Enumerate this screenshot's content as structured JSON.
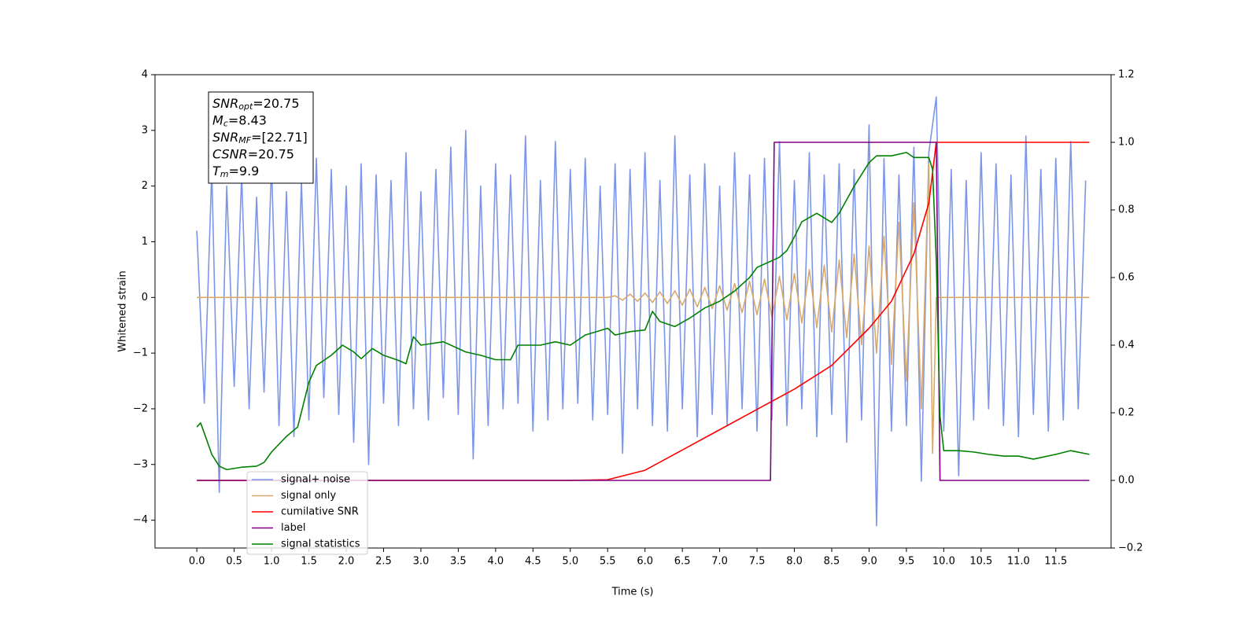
{
  "chart_data": {
    "type": "line",
    "xlabel": "Time (s)",
    "ylabel": "Whitened strain",
    "xlim": [
      -0.56,
      12.24
    ],
    "ylim": [
      -4.5,
      4
    ],
    "y2lim": [
      -0.2,
      1.2
    ],
    "xticks": [
      {
        "value": 0,
        "label": "0.0"
      },
      0.5,
      {
        "value": 1,
        "label": "1.0"
      },
      1.5,
      {
        "value": 2,
        "label": "2.0"
      },
      2.5,
      {
        "value": 3,
        "label": "3.0"
      },
      3.5,
      {
        "value": 4,
        "label": "4.0"
      },
      4.5,
      {
        "value": 5,
        "label": "5.0"
      },
      5.5,
      {
        "value": 6,
        "label": "6.0"
      },
      6.5,
      {
        "value": 7,
        "label": "7.0"
      },
      7.5,
      {
        "value": 8,
        "label": "8.0"
      },
      8.5,
      {
        "value": 9,
        "label": "9.0"
      },
      9.5,
      {
        "value": 10,
        "label": "10.0"
      },
      10.5,
      {
        "value": 11,
        "label": "11.0"
      },
      11.5
    ],
    "yticks": [
      {
        "value": -4,
        "label": "−4"
      },
      {
        "value": -3,
        "label": "−3"
      },
      {
        "value": -2,
        "label": "−2"
      },
      {
        "value": -1,
        "label": "−1"
      },
      0,
      1,
      2,
      3,
      4
    ],
    "y2ticks": [
      {
        "value": -0.2,
        "label": "−0.2"
      },
      {
        "value": 0,
        "label": "0.0"
      },
      0.2,
      0.4,
      0.6,
      0.8,
      {
        "value": 1,
        "label": "1.0"
      },
      1.2
    ],
    "annotation": [
      {
        "text": "SNR",
        "sub": "opt",
        "value": "=20.75"
      },
      {
        "text": "M",
        "sub": "c",
        "value": "=8.43"
      },
      {
        "text": "SNR",
        "sub": "MF",
        "value": "=[22.71]"
      },
      {
        "text": "CSNR",
        "value": "=20.75"
      },
      {
        "text": "T",
        "sub": "m",
        "value": "=9.9"
      }
    ],
    "series": [
      {
        "name": "signal+ noise",
        "color": "#7b96e8",
        "axis": "y",
        "x": [
          0,
          0.1,
          0.2,
          0.3,
          0.4,
          0.5,
          0.6,
          0.7,
          0.8,
          0.9,
          1,
          1.1,
          1.2,
          1.3,
          1.4,
          1.5,
          1.6,
          1.7,
          1.8,
          1.9,
          2,
          2.1,
          2.2,
          2.3,
          2.4,
          2.5,
          2.6,
          2.7,
          2.8,
          2.9,
          3,
          3.1,
          3.2,
          3.3,
          3.4,
          3.5,
          3.6,
          3.7,
          3.8,
          3.9,
          4,
          4.1,
          4.2,
          4.3,
          4.4,
          4.5,
          4.6,
          4.7,
          4.8,
          4.9,
          5,
          5.1,
          5.2,
          5.3,
          5.4,
          5.5,
          5.6,
          5.7,
          5.8,
          5.9,
          6,
          6.1,
          6.2,
          6.3,
          6.4,
          6.5,
          6.6,
          6.7,
          6.8,
          6.9,
          7,
          7.1,
          7.2,
          7.3,
          7.4,
          7.5,
          7.6,
          7.7,
          7.8,
          7.9,
          8,
          8.1,
          8.2,
          8.3,
          8.4,
          8.5,
          8.6,
          8.7,
          8.8,
          8.9,
          9,
          9.1,
          9.2,
          9.3,
          9.4,
          9.5,
          9.6,
          9.7,
          9.8,
          9.9,
          10,
          10.1,
          10.2,
          10.3,
          10.4,
          10.5,
          10.6,
          10.7,
          10.8,
          10.9,
          11,
          11.1,
          11.2,
          11.3,
          11.4,
          11.5,
          11.6,
          11.7,
          11.8,
          11.9
        ],
        "values": [
          1.2,
          -1.9,
          2.3,
          -3.5,
          2.0,
          -1.6,
          2.2,
          -2.0,
          1.8,
          -1.7,
          2.4,
          -2.3,
          1.9,
          -2.5,
          2.1,
          -2.2,
          2.5,
          -1.8,
          2.3,
          -2.1,
          2.0,
          -2.6,
          2.4,
          -3.0,
          2.2,
          -1.9,
          2.1,
          -2.3,
          2.6,
          -2.0,
          1.9,
          -2.2,
          2.3,
          -1.8,
          2.7,
          -2.1,
          3.0,
          -2.9,
          2.0,
          -2.3,
          2.4,
          -2.0,
          2.2,
          -1.9,
          2.9,
          -2.4,
          2.1,
          -2.2,
          2.8,
          -2.0,
          2.3,
          -1.9,
          2.5,
          -2.2,
          2.0,
          -2.1,
          2.4,
          -2.8,
          2.3,
          -2.0,
          2.6,
          -2.3,
          2.1,
          -2.4,
          2.9,
          -2.0,
          2.2,
          -2.5,
          2.4,
          -2.1,
          2.0,
          -2.3,
          2.6,
          -2.0,
          2.2,
          -2.4,
          2.5,
          -2.2,
          2.8,
          -2.3,
          2.1,
          -2.0,
          2.6,
          -2.5,
          2.2,
          -2.1,
          2.4,
          -2.6,
          2.3,
          -2.2,
          3.1,
          -4.1,
          2.5,
          -2.4,
          2.2,
          -2.3,
          2.7,
          -3.3,
          2.6,
          3.6,
          -2.4,
          2.3,
          -3.2,
          2.1,
          -2.2,
          2.6,
          -2.0,
          2.4,
          -2.3,
          2.2,
          -2.5,
          2.9,
          -2.1,
          2.3,
          -2.4,
          2.5,
          -2.2,
          2.8,
          -2.0,
          2.1
        ]
      },
      {
        "name": "signal only",
        "color": "#d9a86b",
        "axis": "y",
        "x": [
          0,
          5.5,
          5.6,
          5.7,
          5.8,
          5.9,
          6,
          6.1,
          6.2,
          6.3,
          6.4,
          6.5,
          6.6,
          6.7,
          6.8,
          6.9,
          7,
          7.1,
          7.2,
          7.3,
          7.4,
          7.5,
          7.6,
          7.7,
          7.8,
          7.9,
          8,
          8.1,
          8.2,
          8.3,
          8.4,
          8.5,
          8.6,
          8.7,
          8.8,
          8.9,
          9,
          9.1,
          9.2,
          9.3,
          9.4,
          9.5,
          9.6,
          9.7,
          9.8,
          9.85,
          9.9,
          11.95
        ],
        "values": [
          0,
          0,
          0.03,
          -0.05,
          0.06,
          -0.07,
          0.08,
          -0.09,
          0.1,
          -0.11,
          0.12,
          -0.14,
          0.15,
          -0.17,
          0.18,
          -0.2,
          0.21,
          -0.23,
          0.25,
          -0.27,
          0.29,
          -0.31,
          0.33,
          -0.35,
          0.38,
          -0.4,
          0.43,
          -0.46,
          0.5,
          -0.54,
          0.58,
          -0.62,
          0.67,
          -0.72,
          0.78,
          -0.85,
          0.92,
          -1.0,
          1.1,
          -1.2,
          1.35,
          -1.5,
          1.7,
          -2.0,
          2.4,
          -2.8,
          0,
          0
        ]
      },
      {
        "name": "cumilative SNR",
        "color": "#ff0000",
        "axis": "y2",
        "x": [
          0,
          5,
          5.5,
          6,
          6.5,
          7,
          7.5,
          8,
          8.5,
          9,
          9.3,
          9.6,
          9.8,
          9.9,
          11.95
        ],
        "values": [
          0,
          0,
          0.002,
          0.03,
          0.09,
          0.15,
          0.21,
          0.27,
          0.34,
          0.45,
          0.53,
          0.67,
          0.82,
          1.0,
          1.0
        ]
      },
      {
        "name": "label",
        "color": "#800080",
        "axis": "y2",
        "x": [
          0,
          7.68,
          7.73,
          9.9,
          9.95,
          11.95
        ],
        "values": [
          0,
          0,
          1,
          1,
          0,
          0
        ]
      },
      {
        "name": "signal statistics",
        "color": "#008000",
        "axis": "y2",
        "x": [
          0,
          0.05,
          0.1,
          0.2,
          0.3,
          0.4,
          0.6,
          0.8,
          0.9,
          1.0,
          1.2,
          1.35,
          1.5,
          1.6,
          1.8,
          1.95,
          2.1,
          2.2,
          2.35,
          2.5,
          2.7,
          2.8,
          2.9,
          3.0,
          3.3,
          3.6,
          3.8,
          4.0,
          4.2,
          4.3,
          4.6,
          4.8,
          5.0,
          5.2,
          5.5,
          5.6,
          5.8,
          6.0,
          6.1,
          6.2,
          6.4,
          6.6,
          6.8,
          7.0,
          7.2,
          7.4,
          7.5,
          7.8,
          7.9,
          8.0,
          8.1,
          8.3,
          8.5,
          8.6,
          8.8,
          9.0,
          9.1,
          9.3,
          9.5,
          9.6,
          9.8,
          9.85,
          9.9,
          9.95,
          10.0,
          10.2,
          10.4,
          10.6,
          10.8,
          11.0,
          11.2,
          11.5,
          11.7,
          11.95
        ],
        "values": [
          0.158,
          0.17,
          0.14,
          0.077,
          0.042,
          0.032,
          0.039,
          0.042,
          0.053,
          0.084,
          0.13,
          0.158,
          0.29,
          0.34,
          0.37,
          0.4,
          0.38,
          0.36,
          0.39,
          0.37,
          0.355,
          0.345,
          0.425,
          0.4,
          0.41,
          0.38,
          0.37,
          0.357,
          0.357,
          0.4,
          0.4,
          0.41,
          0.4,
          0.43,
          0.45,
          0.43,
          0.44,
          0.445,
          0.5,
          0.47,
          0.455,
          0.48,
          0.51,
          0.53,
          0.56,
          0.6,
          0.63,
          0.66,
          0.68,
          0.72,
          0.765,
          0.79,
          0.763,
          0.79,
          0.87,
          0.94,
          0.96,
          0.96,
          0.97,
          0.955,
          0.955,
          0.92,
          0.65,
          0.19,
          0.088,
          0.088,
          0.084,
          0.077,
          0.072,
          0.072,
          0.063,
          0.077,
          0.088,
          0.077
        ]
      }
    ]
  }
}
